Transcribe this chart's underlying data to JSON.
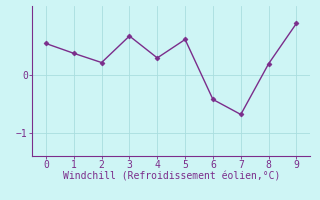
{
  "x": [
    0,
    1,
    2,
    3,
    4,
    5,
    6,
    7,
    8,
    9
  ],
  "y": [
    0.55,
    0.38,
    0.22,
    0.68,
    0.3,
    0.62,
    -0.42,
    -0.68,
    0.2,
    0.9
  ],
  "line_color": "#7b2d8b",
  "marker": "D",
  "marker_size": 2.5,
  "linewidth": 1.0,
  "background_color": "#cef5f5",
  "grid_color": "#aadedf",
  "xlabel": "Windchill (Refroidissement éolien,°C)",
  "xlabel_color": "#7b2d8b",
  "xlabel_fontsize": 7.0,
  "tick_color": "#7b2d8b",
  "tick_fontsize": 7,
  "xlim": [
    -0.5,
    9.5
  ],
  "ylim": [
    -1.4,
    1.2
  ],
  "yticks": [
    0,
    -1
  ],
  "xticks": [
    0,
    1,
    2,
    3,
    4,
    5,
    6,
    7,
    8,
    9
  ],
  "spine_color": "#7b2d8b",
  "axis_linewidth": 0.8
}
